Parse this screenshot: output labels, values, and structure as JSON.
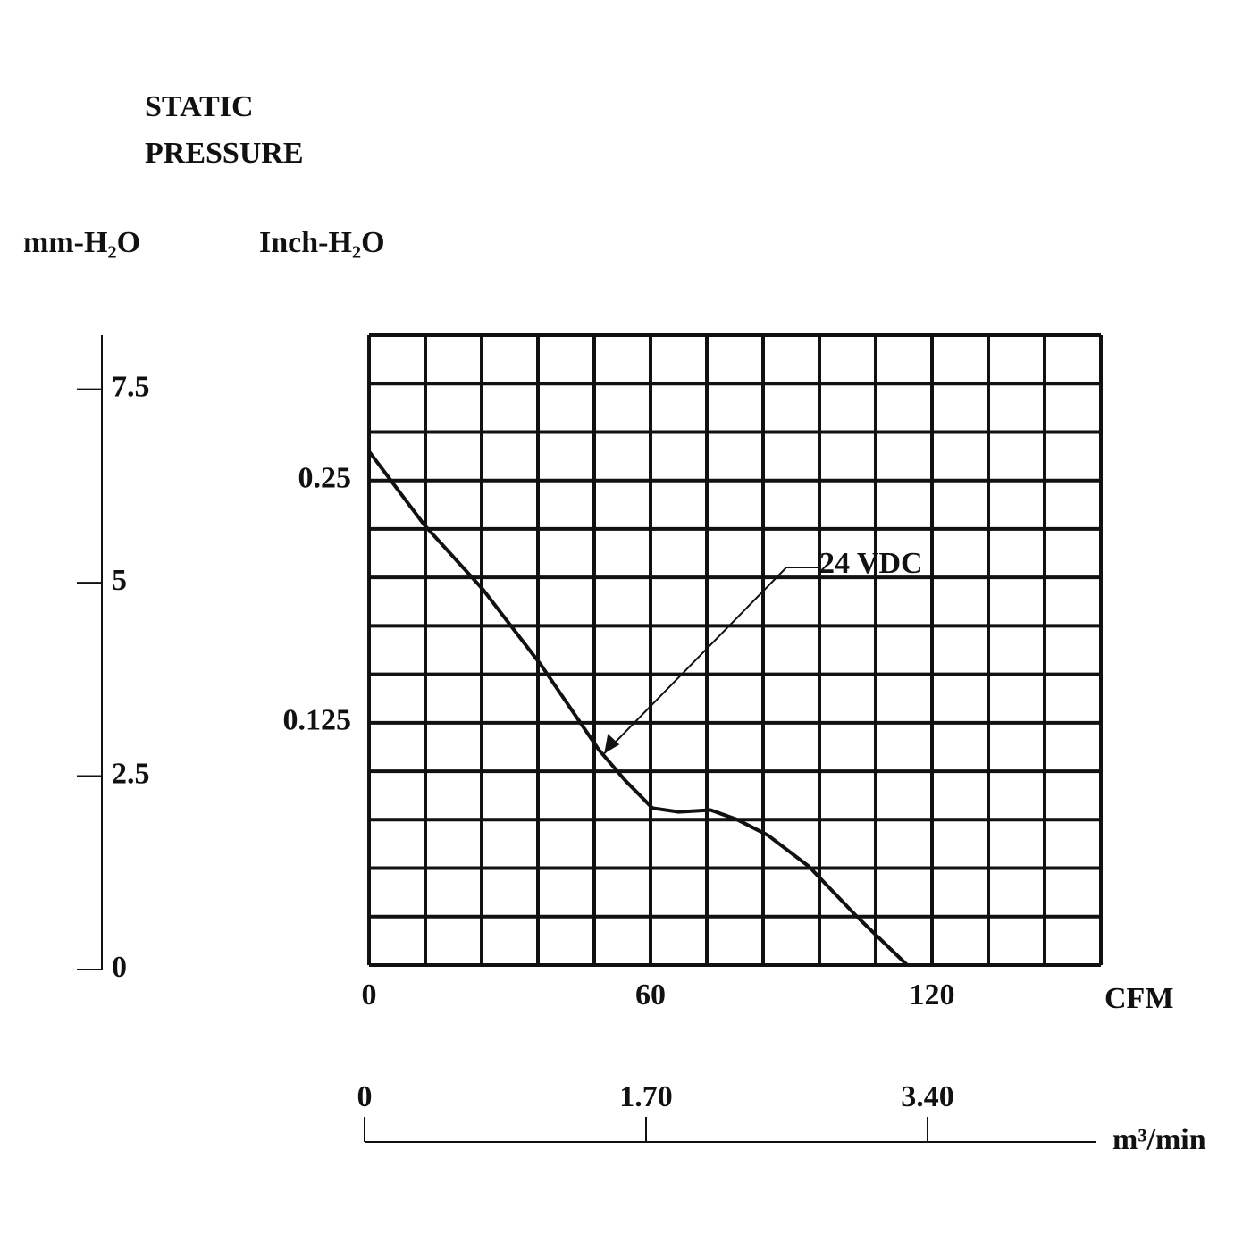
{
  "chart_data": {
    "type": "line",
    "title": [
      "STATIC",
      "PRESSURE"
    ],
    "y_label": "Inch-H₂O",
    "y2_label": "mm-H₂O",
    "x_label": "CFM",
    "x2_label": "m³/min",
    "x": [
      0,
      11.8,
      24.2,
      36.6,
      49,
      54.7,
      60.4,
      66,
      72.8,
      78.5,
      85,
      93.7,
      104,
      114.7
    ],
    "series": [
      {
        "name": "24 VDC",
        "color": "#111111",
        "values": [
          0.265,
          0.227,
          0.194,
          0.155,
          0.111,
          0.095,
          0.081,
          0.079,
          0.08,
          0.075,
          0.067,
          0.051,
          0.025,
          0
        ]
      }
    ],
    "xlim": [
      0,
      156
    ],
    "xticks": [
      0,
      60,
      120
    ],
    "xgrid": [
      0,
      12,
      24,
      36,
      48,
      60,
      72,
      84,
      96,
      108,
      120,
      132,
      144,
      156
    ],
    "ylim": [
      0,
      0.325
    ],
    "yticks": [
      0.125,
      0.25
    ],
    "ygrid": [
      0,
      0.025,
      0.05,
      0.075,
      0.1,
      0.125,
      0.15,
      0.175,
      0.2,
      0.225,
      0.25,
      0.275,
      0.3,
      0.325
    ],
    "y2lim": [
      0,
      8.2
    ],
    "y2ticks": [
      0,
      2.5,
      5,
      7.5
    ],
    "x2lim": [
      0,
      4.42
    ],
    "x2ticks": [
      0,
      {
        "value": 1.7,
        "label": "1.70"
      },
      {
        "value": 3.4,
        "label": "3.40"
      }
    ],
    "grid": true
  }
}
